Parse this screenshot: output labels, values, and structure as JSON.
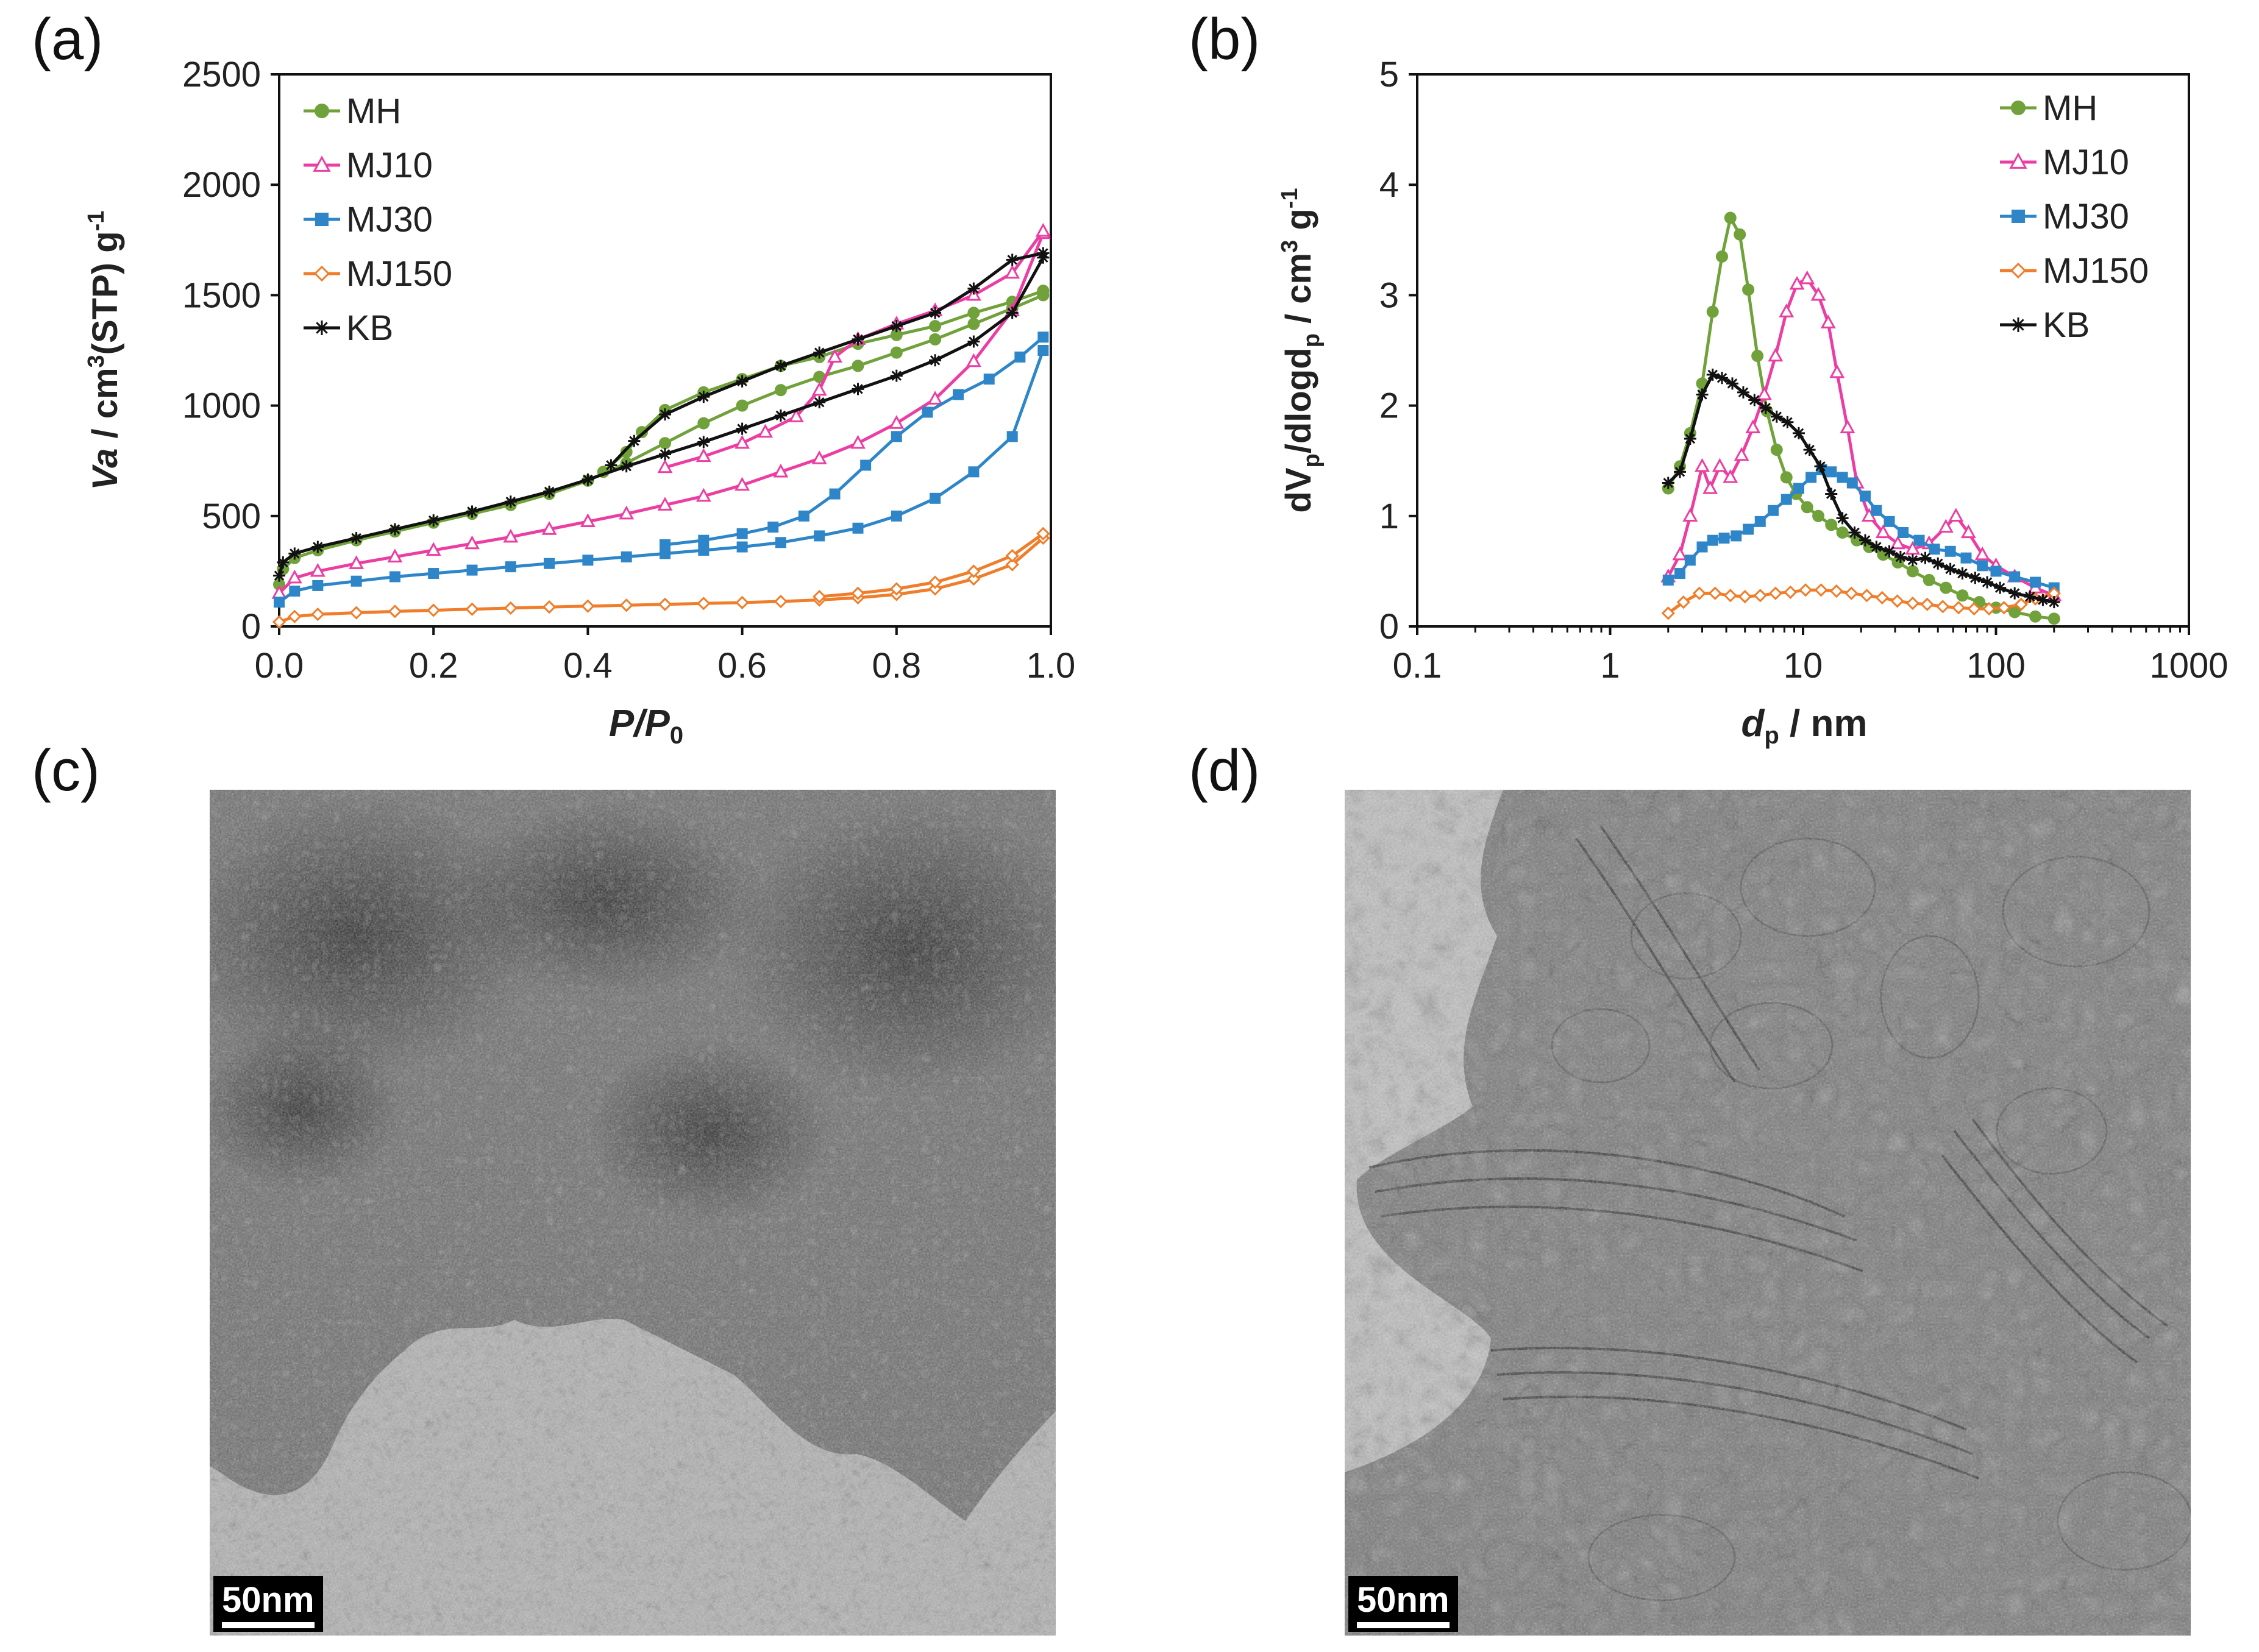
{
  "panels": {
    "a": "(a)",
    "b": "(b)",
    "c": "(c)",
    "d": "(d)"
  },
  "scale_bar": {
    "c": "50nm",
    "d": "50nm"
  },
  "colors": {
    "MH": "#70a13a",
    "MJ10": "#ec3ea2",
    "MJ30": "#2e86c8",
    "MJ150": "#f07d2a",
    "KB": "#111111"
  },
  "chart_data": [
    {
      "id": "a",
      "type": "line",
      "title": "",
      "xlabel": "P/P0",
      "ylabel": "Va / cm3(STP) g-1",
      "xlim": [
        0.0,
        1.0
      ],
      "ylim": [
        0,
        2500
      ],
      "xticks": [
        "0.0",
        "0.2",
        "0.4",
        "0.6",
        "0.8",
        "1.0"
      ],
      "yticks": [
        "0",
        "500",
        "1000",
        "1500",
        "2000",
        "2500"
      ],
      "legend_position": "top-left",
      "series": [
        {
          "name": "MH",
          "marker": "circle-filled",
          "adsorption": [
            [
              0.0,
              190
            ],
            [
              0.005,
              260
            ],
            [
              0.02,
              310
            ],
            [
              0.05,
              345
            ],
            [
              0.1,
              390
            ],
            [
              0.15,
              430
            ],
            [
              0.2,
              470
            ],
            [
              0.25,
              510
            ],
            [
              0.3,
              550
            ],
            [
              0.35,
              600
            ],
            [
              0.4,
              660
            ],
            [
              0.45,
              740
            ],
            [
              0.5,
              830
            ],
            [
              0.55,
              920
            ],
            [
              0.6,
              1000
            ],
            [
              0.65,
              1070
            ],
            [
              0.7,
              1130
            ],
            [
              0.75,
              1180
            ],
            [
              0.8,
              1240
            ],
            [
              0.85,
              1300
            ],
            [
              0.9,
              1370
            ],
            [
              0.95,
              1440
            ],
            [
              0.99,
              1500
            ]
          ],
          "desorption": [
            [
              0.99,
              1520
            ],
            [
              0.95,
              1470
            ],
            [
              0.9,
              1420
            ],
            [
              0.85,
              1360
            ],
            [
              0.8,
              1320
            ],
            [
              0.75,
              1280
            ],
            [
              0.7,
              1220
            ],
            [
              0.65,
              1180
            ],
            [
              0.6,
              1120
            ],
            [
              0.55,
              1060
            ],
            [
              0.5,
              980
            ],
            [
              0.47,
              880
            ],
            [
              0.45,
              790
            ],
            [
              0.42,
              700
            ]
          ]
        },
        {
          "name": "MJ10",
          "marker": "triangle-open",
          "adsorption": [
            [
              0.0,
              150
            ],
            [
              0.02,
              220
            ],
            [
              0.05,
              250
            ],
            [
              0.1,
              285
            ],
            [
              0.15,
              315
            ],
            [
              0.2,
              345
            ],
            [
              0.25,
              375
            ],
            [
              0.3,
              405
            ],
            [
              0.35,
              440
            ],
            [
              0.4,
              475
            ],
            [
              0.45,
              510
            ],
            [
              0.5,
              550
            ],
            [
              0.55,
              590
            ],
            [
              0.6,
              640
            ],
            [
              0.65,
              700
            ],
            [
              0.7,
              760
            ],
            [
              0.75,
              830
            ],
            [
              0.8,
              920
            ],
            [
              0.85,
              1030
            ],
            [
              0.9,
              1200
            ],
            [
              0.95,
              1430
            ],
            [
              0.99,
              1780
            ]
          ],
          "desorption": [
            [
              0.99,
              1790
            ],
            [
              0.95,
              1600
            ],
            [
              0.9,
              1500
            ],
            [
              0.85,
              1430
            ],
            [
              0.8,
              1370
            ],
            [
              0.75,
              1300
            ],
            [
              0.72,
              1220
            ],
            [
              0.7,
              1070
            ],
            [
              0.67,
              950
            ],
            [
              0.63,
              880
            ],
            [
              0.6,
              830
            ],
            [
              0.55,
              770
            ],
            [
              0.5,
              720
            ]
          ]
        },
        {
          "name": "MJ30",
          "marker": "square-filled",
          "adsorption": [
            [
              0.0,
              110
            ],
            [
              0.02,
              160
            ],
            [
              0.05,
              185
            ],
            [
              0.1,
              205
            ],
            [
              0.15,
              225
            ],
            [
              0.2,
              240
            ],
            [
              0.25,
              255
            ],
            [
              0.3,
              270
            ],
            [
              0.35,
              285
            ],
            [
              0.4,
              300
            ],
            [
              0.45,
              315
            ],
            [
              0.5,
              330
            ],
            [
              0.55,
              345
            ],
            [
              0.6,
              360
            ],
            [
              0.65,
              380
            ],
            [
              0.7,
              410
            ],
            [
              0.75,
              445
            ],
            [
              0.8,
              500
            ],
            [
              0.85,
              580
            ],
            [
              0.9,
              700
            ],
            [
              0.95,
              860
            ],
            [
              0.99,
              1250
            ]
          ],
          "desorption": [
            [
              0.99,
              1310
            ],
            [
              0.96,
              1220
            ],
            [
              0.92,
              1120
            ],
            [
              0.88,
              1050
            ],
            [
              0.84,
              970
            ],
            [
              0.8,
              860
            ],
            [
              0.76,
              730
            ],
            [
              0.72,
              600
            ],
            [
              0.68,
              500
            ],
            [
              0.64,
              450
            ],
            [
              0.6,
              420
            ],
            [
              0.55,
              390
            ],
            [
              0.5,
              370
            ]
          ]
        },
        {
          "name": "MJ150",
          "marker": "diamond-open",
          "adsorption": [
            [
              0.0,
              20
            ],
            [
              0.02,
              45
            ],
            [
              0.05,
              55
            ],
            [
              0.1,
              62
            ],
            [
              0.15,
              68
            ],
            [
              0.2,
              73
            ],
            [
              0.25,
              78
            ],
            [
              0.3,
              83
            ],
            [
              0.35,
              88
            ],
            [
              0.4,
              92
            ],
            [
              0.45,
              96
            ],
            [
              0.5,
              100
            ],
            [
              0.55,
              104
            ],
            [
              0.6,
              108
            ],
            [
              0.65,
              113
            ],
            [
              0.7,
              120
            ],
            [
              0.75,
              130
            ],
            [
              0.8,
              145
            ],
            [
              0.85,
              170
            ],
            [
              0.9,
              215
            ],
            [
              0.95,
              280
            ],
            [
              0.99,
              400
            ]
          ],
          "desorption": [
            [
              0.99,
              420
            ],
            [
              0.95,
              320
            ],
            [
              0.9,
              250
            ],
            [
              0.85,
              200
            ],
            [
              0.8,
              170
            ],
            [
              0.75,
              150
            ],
            [
              0.7,
              135
            ]
          ]
        },
        {
          "name": "KB",
          "marker": "star",
          "adsorption": [
            [
              0.0,
              230
            ],
            [
              0.005,
              290
            ],
            [
              0.02,
              330
            ],
            [
              0.05,
              360
            ],
            [
              0.1,
              400
            ],
            [
              0.15,
              440
            ],
            [
              0.2,
              480
            ],
            [
              0.25,
              520
            ],
            [
              0.3,
              565
            ],
            [
              0.35,
              610
            ],
            [
              0.4,
              665
            ],
            [
              0.45,
              725
            ],
            [
              0.5,
              780
            ],
            [
              0.55,
              835
            ],
            [
              0.6,
              895
            ],
            [
              0.65,
              955
            ],
            [
              0.7,
              1015
            ],
            [
              0.75,
              1075
            ],
            [
              0.8,
              1135
            ],
            [
              0.85,
              1205
            ],
            [
              0.9,
              1290
            ],
            [
              0.95,
              1420
            ],
            [
              0.99,
              1670
            ]
          ],
          "desorption": [
            [
              0.99,
              1690
            ],
            [
              0.95,
              1660
            ],
            [
              0.9,
              1530
            ],
            [
              0.85,
              1420
            ],
            [
              0.8,
              1360
            ],
            [
              0.75,
              1300
            ],
            [
              0.7,
              1240
            ],
            [
              0.65,
              1180
            ],
            [
              0.6,
              1110
            ],
            [
              0.55,
              1040
            ],
            [
              0.5,
              960
            ],
            [
              0.46,
              840
            ],
            [
              0.43,
              730
            ]
          ]
        }
      ]
    },
    {
      "id": "b",
      "type": "line",
      "title": "",
      "xlabel": "dp / nm",
      "ylabel": "dVp/dlogdp / cm3 g-1",
      "xscale": "log",
      "xlim": [
        0.1,
        1000
      ],
      "ylim": [
        0,
        5
      ],
      "xticks": [
        "0.1",
        "1",
        "10",
        "100",
        "1000"
      ],
      "yticks": [
        "0",
        "1",
        "2",
        "3",
        "4",
        "5"
      ],
      "legend_position": "top-right",
      "series": [
        {
          "name": "MH",
          "marker": "circle-filled",
          "x": [
            2.0,
            2.3,
            2.6,
            3.0,
            3.4,
            3.8,
            4.2,
            4.7,
            5.2,
            5.8,
            6.5,
            7.3,
            8.2,
            9.2,
            10.5,
            12,
            14,
            16,
            19,
            22,
            26,
            31,
            37,
            45,
            55,
            67,
            82,
            100,
            125,
            160,
            200
          ],
          "y": [
            1.25,
            1.45,
            1.75,
            2.2,
            2.85,
            3.35,
            3.7,
            3.55,
            3.05,
            2.45,
            1.95,
            1.6,
            1.35,
            1.2,
            1.08,
            1.0,
            0.92,
            0.85,
            0.78,
            0.72,
            0.65,
            0.58,
            0.5,
            0.42,
            0.35,
            0.28,
            0.22,
            0.17,
            0.13,
            0.09,
            0.07
          ]
        },
        {
          "name": "MJ10",
          "marker": "triangle-open",
          "x": [
            2.0,
            2.3,
            2.6,
            3.0,
            3.3,
            3.7,
            4.2,
            4.8,
            5.5,
            6.3,
            7.2,
            8.2,
            9.3,
            10.5,
            12,
            13.5,
            15,
            17,
            19,
            22,
            26,
            31,
            37,
            45,
            55,
            62,
            72,
            85,
            100,
            125,
            160,
            200
          ],
          "y": [
            0.45,
            0.65,
            1.0,
            1.45,
            1.25,
            1.45,
            1.35,
            1.55,
            1.8,
            2.1,
            2.45,
            2.85,
            3.1,
            3.15,
            3.0,
            2.75,
            2.3,
            1.8,
            1.3,
            1.0,
            0.85,
            0.75,
            0.7,
            0.75,
            0.9,
            1.0,
            0.85,
            0.65,
            0.55,
            0.45,
            0.35,
            0.28
          ]
        },
        {
          "name": "MJ30",
          "marker": "square-filled",
          "x": [
            2.0,
            2.3,
            2.6,
            3.0,
            3.4,
            3.9,
            4.5,
            5.2,
            6.0,
            7.0,
            8.2,
            9.5,
            11,
            12.5,
            14,
            16,
            18,
            21,
            24,
            28,
            33,
            40,
            48,
            58,
            70,
            85,
            100,
            125,
            160,
            200
          ],
          "y": [
            0.42,
            0.48,
            0.6,
            0.72,
            0.78,
            0.8,
            0.82,
            0.88,
            0.95,
            1.05,
            1.15,
            1.25,
            1.35,
            1.42,
            1.4,
            1.35,
            1.3,
            1.18,
            1.05,
            0.95,
            0.85,
            0.78,
            0.7,
            0.68,
            0.62,
            0.55,
            0.5,
            0.45,
            0.4,
            0.35
          ]
        },
        {
          "name": "MJ150",
          "marker": "diamond-open",
          "x": [
            2.0,
            2.4,
            2.9,
            3.5,
            4.2,
            5.0,
            6.0,
            7.2,
            8.6,
            10.3,
            12.4,
            14.9,
            17.8,
            21.4,
            25.7,
            30.8,
            37,
            44,
            53,
            64,
            77,
            92,
            110,
            135,
            160,
            200
          ],
          "y": [
            0.12,
            0.22,
            0.3,
            0.3,
            0.28,
            0.27,
            0.28,
            0.3,
            0.31,
            0.33,
            0.33,
            0.32,
            0.3,
            0.28,
            0.26,
            0.23,
            0.21,
            0.2,
            0.18,
            0.17,
            0.16,
            0.16,
            0.17,
            0.2,
            0.25,
            0.3
          ]
        },
        {
          "name": "KB",
          "marker": "star",
          "x": [
            2.0,
            2.3,
            2.6,
            3.0,
            3.4,
            3.8,
            4.3,
            4.9,
            5.6,
            6.4,
            7.3,
            8.3,
            9.5,
            10.8,
            12.3,
            14,
            16,
            18.5,
            21,
            24,
            28,
            32,
            37,
            43,
            50,
            58,
            67,
            78,
            90,
            105,
            125,
            150,
            175,
            200
          ],
          "y": [
            1.3,
            1.4,
            1.7,
            2.1,
            2.28,
            2.25,
            2.2,
            2.12,
            2.05,
            1.98,
            1.9,
            1.85,
            1.75,
            1.6,
            1.45,
            1.2,
            0.98,
            0.85,
            0.78,
            0.72,
            0.68,
            0.63,
            0.6,
            0.62,
            0.57,
            0.52,
            0.48,
            0.44,
            0.4,
            0.35,
            0.3,
            0.27,
            0.24,
            0.22
          ]
        }
      ]
    }
  ]
}
